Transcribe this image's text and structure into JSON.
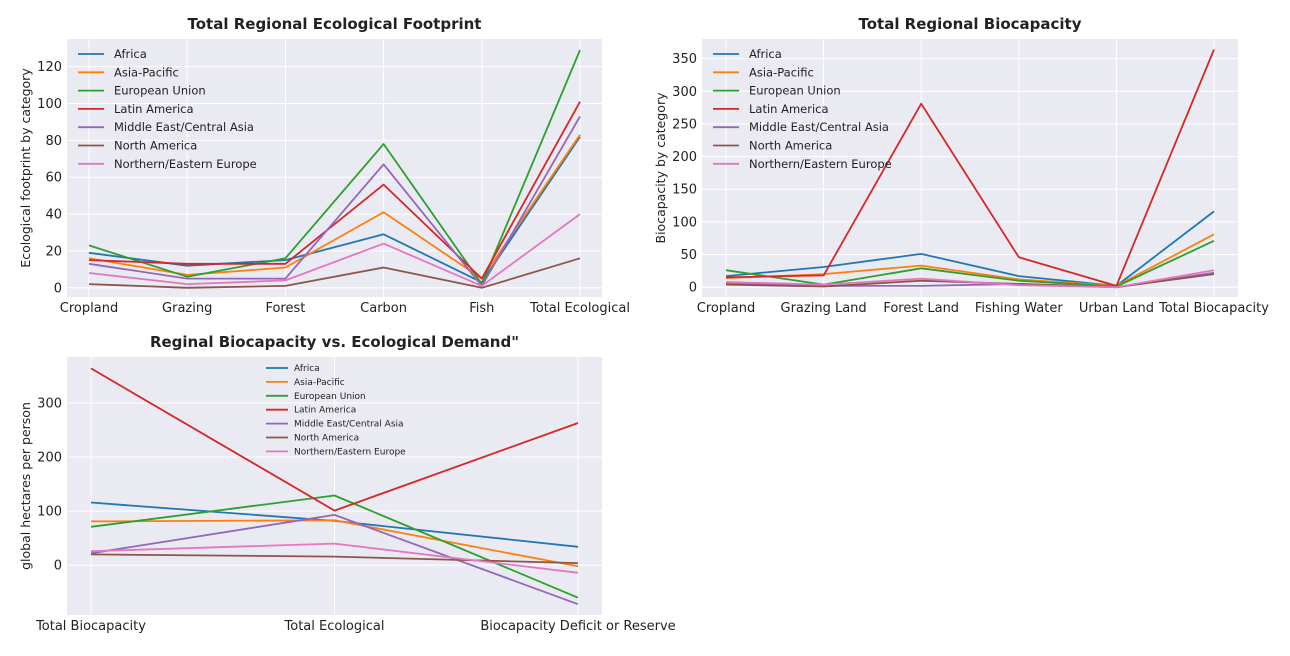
{
  "colors": [
    "#1f77b4",
    "#ff7f0e",
    "#2ca02c",
    "#d62728",
    "#9467bd",
    "#8c564b",
    "#e377c2"
  ],
  "chart_data": [
    {
      "type": "line",
      "title": "Total Regional Ecological Footprint",
      "xlabel": "",
      "ylabel": "Ecological footprint by category",
      "categories": [
        "Cropland",
        "Grazing",
        "Forest",
        "Carbon",
        "Fish",
        "Total Ecological"
      ],
      "ylim": [
        -5,
        135
      ],
      "yticks": [
        "0",
        "20",
        "40",
        "60",
        "80",
        "100",
        "120"
      ],
      "ytick_values": [
        0,
        20,
        40,
        60,
        80,
        100,
        120
      ],
      "grid": true,
      "legend": "top-left",
      "series": [
        {
          "name": "Africa",
          "values": [
            19,
            12,
            15,
            29,
            3,
            82
          ]
        },
        {
          "name": "Asia-Pacific",
          "values": [
            16,
            7,
            11,
            41,
            5,
            83
          ]
        },
        {
          "name": "European Union",
          "values": [
            23,
            6,
            16,
            78,
            2,
            129
          ]
        },
        {
          "name": "Latin America",
          "values": [
            15,
            13,
            13,
            56,
            5,
            101
          ]
        },
        {
          "name": "Middle East/Central Asia",
          "values": [
            13,
            5,
            5,
            67,
            1,
            93
          ]
        },
        {
          "name": "North America",
          "values": [
            2,
            0,
            1,
            11,
            0,
            16
          ]
        },
        {
          "name": "Northern/Eastern Europe",
          "values": [
            8,
            2,
            4,
            24,
            1,
            40
          ]
        }
      ]
    },
    {
      "type": "line",
      "title": "Total Regional Biocapacity",
      "xlabel": "",
      "ylabel": "Biocapacity by category",
      "categories": [
        "Cropland",
        "Grazing Land",
        "Forest Land",
        "Fishing Water",
        "Urban Land",
        "Total Biocapacity"
      ],
      "ylim": [
        -15,
        380
      ],
      "yticks": [
        "0",
        "50",
        "100",
        "150",
        "200",
        "250",
        "300",
        "350"
      ],
      "ytick_values": [
        0,
        50,
        100,
        150,
        200,
        250,
        300,
        350
      ],
      "grid": true,
      "legend": "top-left",
      "series": [
        {
          "name": "Africa",
          "values": [
            17,
            31,
            51,
            17,
            2,
            116
          ]
        },
        {
          "name": "Asia-Pacific",
          "values": [
            14,
            20,
            33,
            12,
            2,
            81
          ]
        },
        {
          "name": "European Union",
          "values": [
            26,
            4,
            29,
            10,
            1,
            71
          ]
        },
        {
          "name": "Latin America",
          "values": [
            15,
            18,
            281,
            46,
            2,
            364
          ]
        },
        {
          "name": "Middle East/Central Asia",
          "values": [
            6,
            2,
            2,
            5,
            0,
            22
          ]
        },
        {
          "name": "North America",
          "values": [
            4,
            1,
            10,
            5,
            0,
            20
          ]
        },
        {
          "name": "Northern/Eastern Europe",
          "values": [
            8,
            4,
            13,
            3,
            0,
            26
          ]
        }
      ]
    },
    {
      "type": "line",
      "title": "Reginal Biocapacity vs. Ecological Demand\"",
      "xlabel": "",
      "ylabel": "global hectares per person",
      "categories": [
        "Total Biocapacity",
        "Total Ecological",
        "Biocapacity Deficit or Reserve"
      ],
      "ylim": [
        -92,
        385
      ],
      "yticks": [
        "0",
        "100",
        "200",
        "300"
      ],
      "ytick_values": [
        0,
        100,
        200,
        300
      ],
      "grid": true,
      "legend": "top-center",
      "series": [
        {
          "name": "Africa",
          "values": [
            116,
            82,
            34
          ]
        },
        {
          "name": "Asia-Pacific",
          "values": [
            81,
            83,
            -2
          ]
        },
        {
          "name": "European Union",
          "values": [
            71,
            129,
            -60
          ]
        },
        {
          "name": "Latin America",
          "values": [
            364,
            101,
            263
          ]
        },
        {
          "name": "Middle East/Central Asia",
          "values": [
            22,
            93,
            -72
          ]
        },
        {
          "name": "North America",
          "values": [
            20,
            16,
            4
          ]
        },
        {
          "name": "Northern/Eastern Europe",
          "values": [
            26,
            40,
            -14
          ]
        }
      ]
    }
  ]
}
